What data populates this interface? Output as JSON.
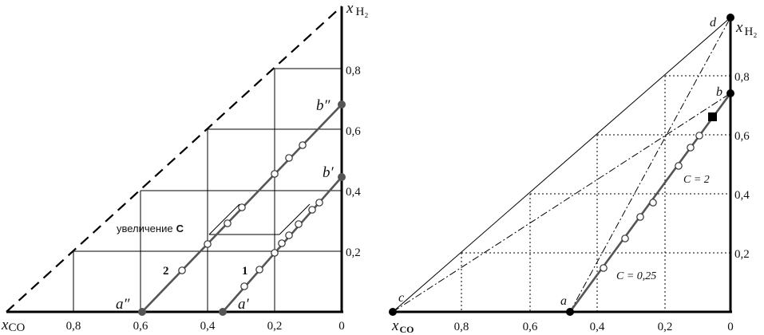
{
  "left": {
    "x_axis_symbol": "x",
    "x_axis_sub": "CO",
    "y_axis_symbol": "x",
    "y_axis_sub": "H₂",
    "x_ticks": [
      "0,8",
      "0,6",
      "0,4",
      "0,2",
      "0"
    ],
    "y_ticks": [
      "0,8",
      "0,6",
      "0,4",
      "0,2"
    ],
    "point_a_double_prime": "a″",
    "point_a_prime": "a′",
    "point_b_double_prime": "b″",
    "point_b_prime": "b′",
    "line1_label": "1",
    "line2_label": "2",
    "increase_label": "увеличение",
    "increase_symbol": "C"
  },
  "right": {
    "x_axis_symbol": "x",
    "x_axis_sub": "CO",
    "y_axis_symbol": "x",
    "y_axis_sub": "H₂",
    "x_ticks": [
      "0,8",
      "0,6",
      "0,4",
      "0,2",
      "0"
    ],
    "y_ticks": [
      "0,8",
      "0,6",
      "0,4",
      "0,2"
    ],
    "point_a": "a",
    "point_b": "b",
    "point_c": "c",
    "point_d": "d",
    "label_c2": "C = 2",
    "label_c025": "C = 0,25"
  }
}
